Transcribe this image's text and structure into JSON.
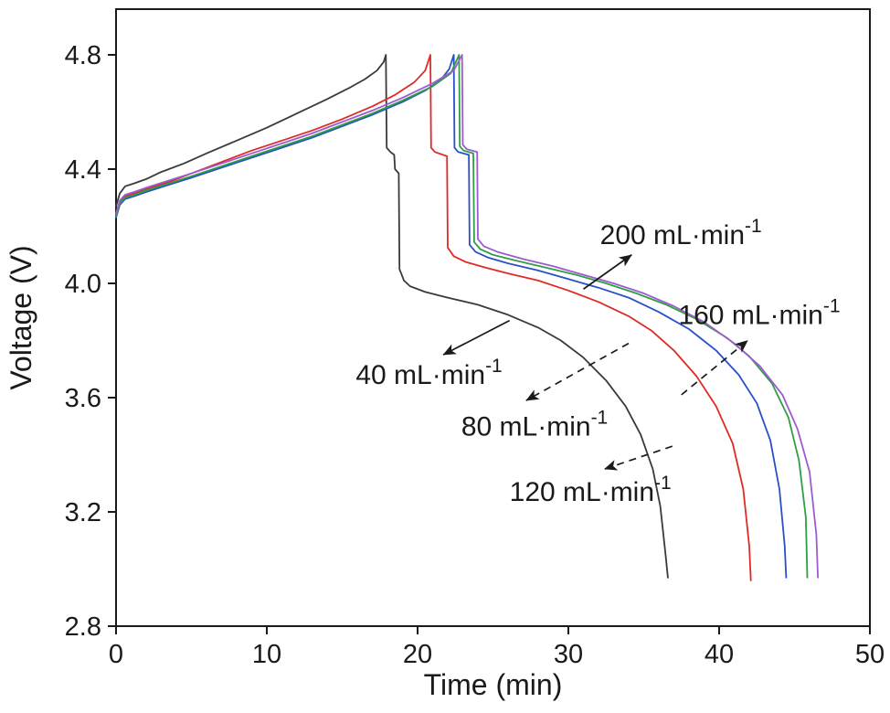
{
  "figure": {
    "background": "#ffffff",
    "description": "Charge-discharge voltage curves of a cell at different electrolyte flow rates"
  },
  "chart_data": {
    "type": "line",
    "title": "",
    "xlabel": "Time (min)",
    "ylabel": "Voltage (V)",
    "xlim": [
      0,
      50
    ],
    "ylim": [
      2.8,
      4.96
    ],
    "x_ticks": [
      0,
      10,
      20,
      30,
      40,
      50
    ],
    "x_tick_labels": [
      "0",
      "10",
      "20",
      "30",
      "40",
      "50"
    ],
    "y_ticks": [
      2.8,
      3.2,
      3.6,
      4.0,
      4.4,
      4.8
    ],
    "y_tick_labels": [
      "2.8",
      "3.2",
      "3.6",
      "4.0",
      "4.4",
      "4.8"
    ],
    "grid": false,
    "legend_position": "none",
    "axis_color": "#1a1a1a",
    "series": [
      {
        "name": "40 mL·min⁻¹",
        "color": "#3a3a3a",
        "points": [
          [
            0,
            4.27
          ],
          [
            0.25,
            4.315
          ],
          [
            0.6,
            4.34
          ],
          [
            1.2,
            4.35
          ],
          [
            2,
            4.365
          ],
          [
            3,
            4.39
          ],
          [
            4.5,
            4.42
          ],
          [
            6,
            4.455
          ],
          [
            8,
            4.5
          ],
          [
            10,
            4.545
          ],
          [
            12,
            4.595
          ],
          [
            14,
            4.645
          ],
          [
            15.5,
            4.685
          ],
          [
            16.5,
            4.715
          ],
          [
            17.3,
            4.745
          ],
          [
            17.75,
            4.775
          ],
          [
            17.9,
            4.8
          ],
          [
            17.95,
            4.475
          ],
          [
            18.2,
            4.46
          ],
          [
            18.45,
            4.45
          ],
          [
            18.5,
            4.4
          ],
          [
            18.75,
            4.385
          ],
          [
            18.8,
            4.05
          ],
          [
            19.1,
            4.01
          ],
          [
            19.5,
            3.99
          ],
          [
            20.5,
            3.97
          ],
          [
            22,
            3.95
          ],
          [
            24,
            3.925
          ],
          [
            26,
            3.89
          ],
          [
            28,
            3.845
          ],
          [
            29.5,
            3.8
          ],
          [
            31,
            3.74
          ],
          [
            32.5,
            3.66
          ],
          [
            33.8,
            3.57
          ],
          [
            34.8,
            3.47
          ],
          [
            35.6,
            3.35
          ],
          [
            36.1,
            3.22
          ],
          [
            36.45,
            3.05
          ],
          [
            36.6,
            2.97
          ]
        ]
      },
      {
        "name": "80 mL·min⁻¹",
        "color": "#df2b26",
        "points": [
          [
            0,
            4.24
          ],
          [
            0.25,
            4.285
          ],
          [
            0.6,
            4.305
          ],
          [
            1.2,
            4.315
          ],
          [
            2,
            4.33
          ],
          [
            3.5,
            4.355
          ],
          [
            5,
            4.385
          ],
          [
            7,
            4.425
          ],
          [
            9,
            4.465
          ],
          [
            11,
            4.5
          ],
          [
            13,
            4.535
          ],
          [
            15,
            4.575
          ],
          [
            17,
            4.62
          ],
          [
            18.5,
            4.66
          ],
          [
            19.8,
            4.705
          ],
          [
            20.5,
            4.745
          ],
          [
            20.85,
            4.8
          ],
          [
            20.9,
            4.475
          ],
          [
            21.15,
            4.46
          ],
          [
            21.95,
            4.445
          ],
          [
            22,
            4.125
          ],
          [
            22.4,
            4.095
          ],
          [
            23.2,
            4.075
          ],
          [
            24.5,
            4.055
          ],
          [
            26,
            4.035
          ],
          [
            28,
            4.01
          ],
          [
            30,
            3.975
          ],
          [
            32,
            3.935
          ],
          [
            34,
            3.885
          ],
          [
            35.5,
            3.835
          ],
          [
            37,
            3.765
          ],
          [
            38.5,
            3.675
          ],
          [
            39.8,
            3.57
          ],
          [
            40.9,
            3.44
          ],
          [
            41.6,
            3.28
          ],
          [
            42,
            3.08
          ],
          [
            42.1,
            2.96
          ]
        ]
      },
      {
        "name": "120 mL·min⁻¹",
        "color": "#2850c8",
        "points": [
          [
            0,
            4.23
          ],
          [
            0.25,
            4.275
          ],
          [
            0.6,
            4.295
          ],
          [
            1.2,
            4.305
          ],
          [
            2,
            4.32
          ],
          [
            3.5,
            4.345
          ],
          [
            5,
            4.37
          ],
          [
            7,
            4.405
          ],
          [
            9,
            4.44
          ],
          [
            11,
            4.475
          ],
          [
            13,
            4.51
          ],
          [
            15,
            4.55
          ],
          [
            17,
            4.59
          ],
          [
            19,
            4.635
          ],
          [
            20.5,
            4.675
          ],
          [
            21.5,
            4.71
          ],
          [
            22.1,
            4.75
          ],
          [
            22.4,
            4.8
          ],
          [
            22.45,
            4.475
          ],
          [
            22.7,
            4.46
          ],
          [
            23.4,
            4.45
          ],
          [
            23.45,
            4.135
          ],
          [
            23.85,
            4.11
          ],
          [
            24.7,
            4.09
          ],
          [
            26,
            4.07
          ],
          [
            28,
            4.045
          ],
          [
            30,
            4.015
          ],
          [
            32,
            3.985
          ],
          [
            34,
            3.95
          ],
          [
            36,
            3.9
          ],
          [
            38,
            3.84
          ],
          [
            39.8,
            3.765
          ],
          [
            41.3,
            3.68
          ],
          [
            42.5,
            3.58
          ],
          [
            43.4,
            3.45
          ],
          [
            44,
            3.28
          ],
          [
            44.35,
            3.08
          ],
          [
            44.45,
            2.97
          ]
        ]
      },
      {
        "name": "160 mL·min⁻¹",
        "color": "#2f9e44",
        "points": [
          [
            0,
            4.235
          ],
          [
            0.25,
            4.28
          ],
          [
            0.6,
            4.3
          ],
          [
            1.2,
            4.31
          ],
          [
            2,
            4.325
          ],
          [
            3.5,
            4.35
          ],
          [
            5,
            4.375
          ],
          [
            7,
            4.41
          ],
          [
            9,
            4.445
          ],
          [
            11,
            4.48
          ],
          [
            13,
            4.515
          ],
          [
            15,
            4.555
          ],
          [
            17,
            4.595
          ],
          [
            19,
            4.64
          ],
          [
            21,
            4.69
          ],
          [
            22.2,
            4.735
          ],
          [
            22.75,
            4.8
          ],
          [
            22.8,
            4.48
          ],
          [
            23.05,
            4.465
          ],
          [
            23.7,
            4.455
          ],
          [
            23.75,
            4.145
          ],
          [
            24.15,
            4.12
          ],
          [
            25,
            4.1
          ],
          [
            26.5,
            4.08
          ],
          [
            28.5,
            4.055
          ],
          [
            30.5,
            4.03
          ],
          [
            32.5,
            4.0
          ],
          [
            34.5,
            3.965
          ],
          [
            36.5,
            3.925
          ],
          [
            38.5,
            3.875
          ],
          [
            40.5,
            3.81
          ],
          [
            42,
            3.745
          ],
          [
            43.5,
            3.65
          ],
          [
            44.6,
            3.53
          ],
          [
            45.3,
            3.38
          ],
          [
            45.75,
            3.18
          ],
          [
            45.85,
            2.97
          ]
        ]
      },
      {
        "name": "200 mL·min⁻¹",
        "color": "#9d5bd2",
        "points": [
          [
            0,
            4.245
          ],
          [
            0.25,
            4.29
          ],
          [
            0.6,
            4.31
          ],
          [
            1.2,
            4.32
          ],
          [
            2,
            4.335
          ],
          [
            3.5,
            4.36
          ],
          [
            5,
            4.385
          ],
          [
            7,
            4.42
          ],
          [
            9,
            4.455
          ],
          [
            11,
            4.49
          ],
          [
            13,
            4.525
          ],
          [
            15,
            4.565
          ],
          [
            17,
            4.605
          ],
          [
            19,
            4.65
          ],
          [
            21,
            4.7
          ],
          [
            22.4,
            4.745
          ],
          [
            22.95,
            4.8
          ],
          [
            23,
            4.485
          ],
          [
            23.25,
            4.47
          ],
          [
            23.95,
            4.46
          ],
          [
            24,
            4.155
          ],
          [
            24.4,
            4.13
          ],
          [
            25.3,
            4.11
          ],
          [
            27,
            4.085
          ],
          [
            29,
            4.06
          ],
          [
            31,
            4.03
          ],
          [
            33,
            4.0
          ],
          [
            35,
            3.965
          ],
          [
            37,
            3.92
          ],
          [
            39,
            3.865
          ],
          [
            41,
            3.79
          ],
          [
            42.7,
            3.71
          ],
          [
            44.2,
            3.61
          ],
          [
            45.2,
            3.49
          ],
          [
            46,
            3.34
          ],
          [
            46.45,
            3.12
          ],
          [
            46.55,
            2.97
          ]
        ]
      }
    ],
    "annotations": [
      {
        "id": "40",
        "prefix": "40 mL·min",
        "exp": "-1",
        "tx": 15.9,
        "ty": 3.68,
        "arrow": {
          "x1": 26.1,
          "y1": 3.87,
          "x2": 21.7,
          "y2": 3.75
        },
        "line": "solid"
      },
      {
        "id": "80",
        "prefix": "80 mL·min",
        "exp": "-1",
        "tx": 22.9,
        "ty": 3.5,
        "arrow": {
          "x1": 34.0,
          "y1": 3.79,
          "x2": 27.2,
          "y2": 3.59
        },
        "line": "dashed"
      },
      {
        "id": "120",
        "prefix": "120 mL·min",
        "exp": "-1",
        "tx": 26.1,
        "ty": 3.27,
        "arrow": {
          "x1": 36.9,
          "y1": 3.43,
          "x2": 32.4,
          "y2": 3.35
        },
        "line": "dashed"
      },
      {
        "id": "160",
        "prefix": "160 mL·min",
        "exp": "-1",
        "tx": 37.3,
        "ty": 3.89,
        "arrow": {
          "x1": 37.5,
          "y1": 3.61,
          "x2": 41.9,
          "y2": 3.8
        },
        "line": "dashed"
      },
      {
        "id": "200",
        "prefix": "200 mL·min",
        "exp": "-1",
        "tx": 32.1,
        "ty": 4.17,
        "arrow": {
          "x1": 31.0,
          "y1": 3.98,
          "x2": 34.2,
          "y2": 4.1
        },
        "line": "solid"
      }
    ]
  }
}
